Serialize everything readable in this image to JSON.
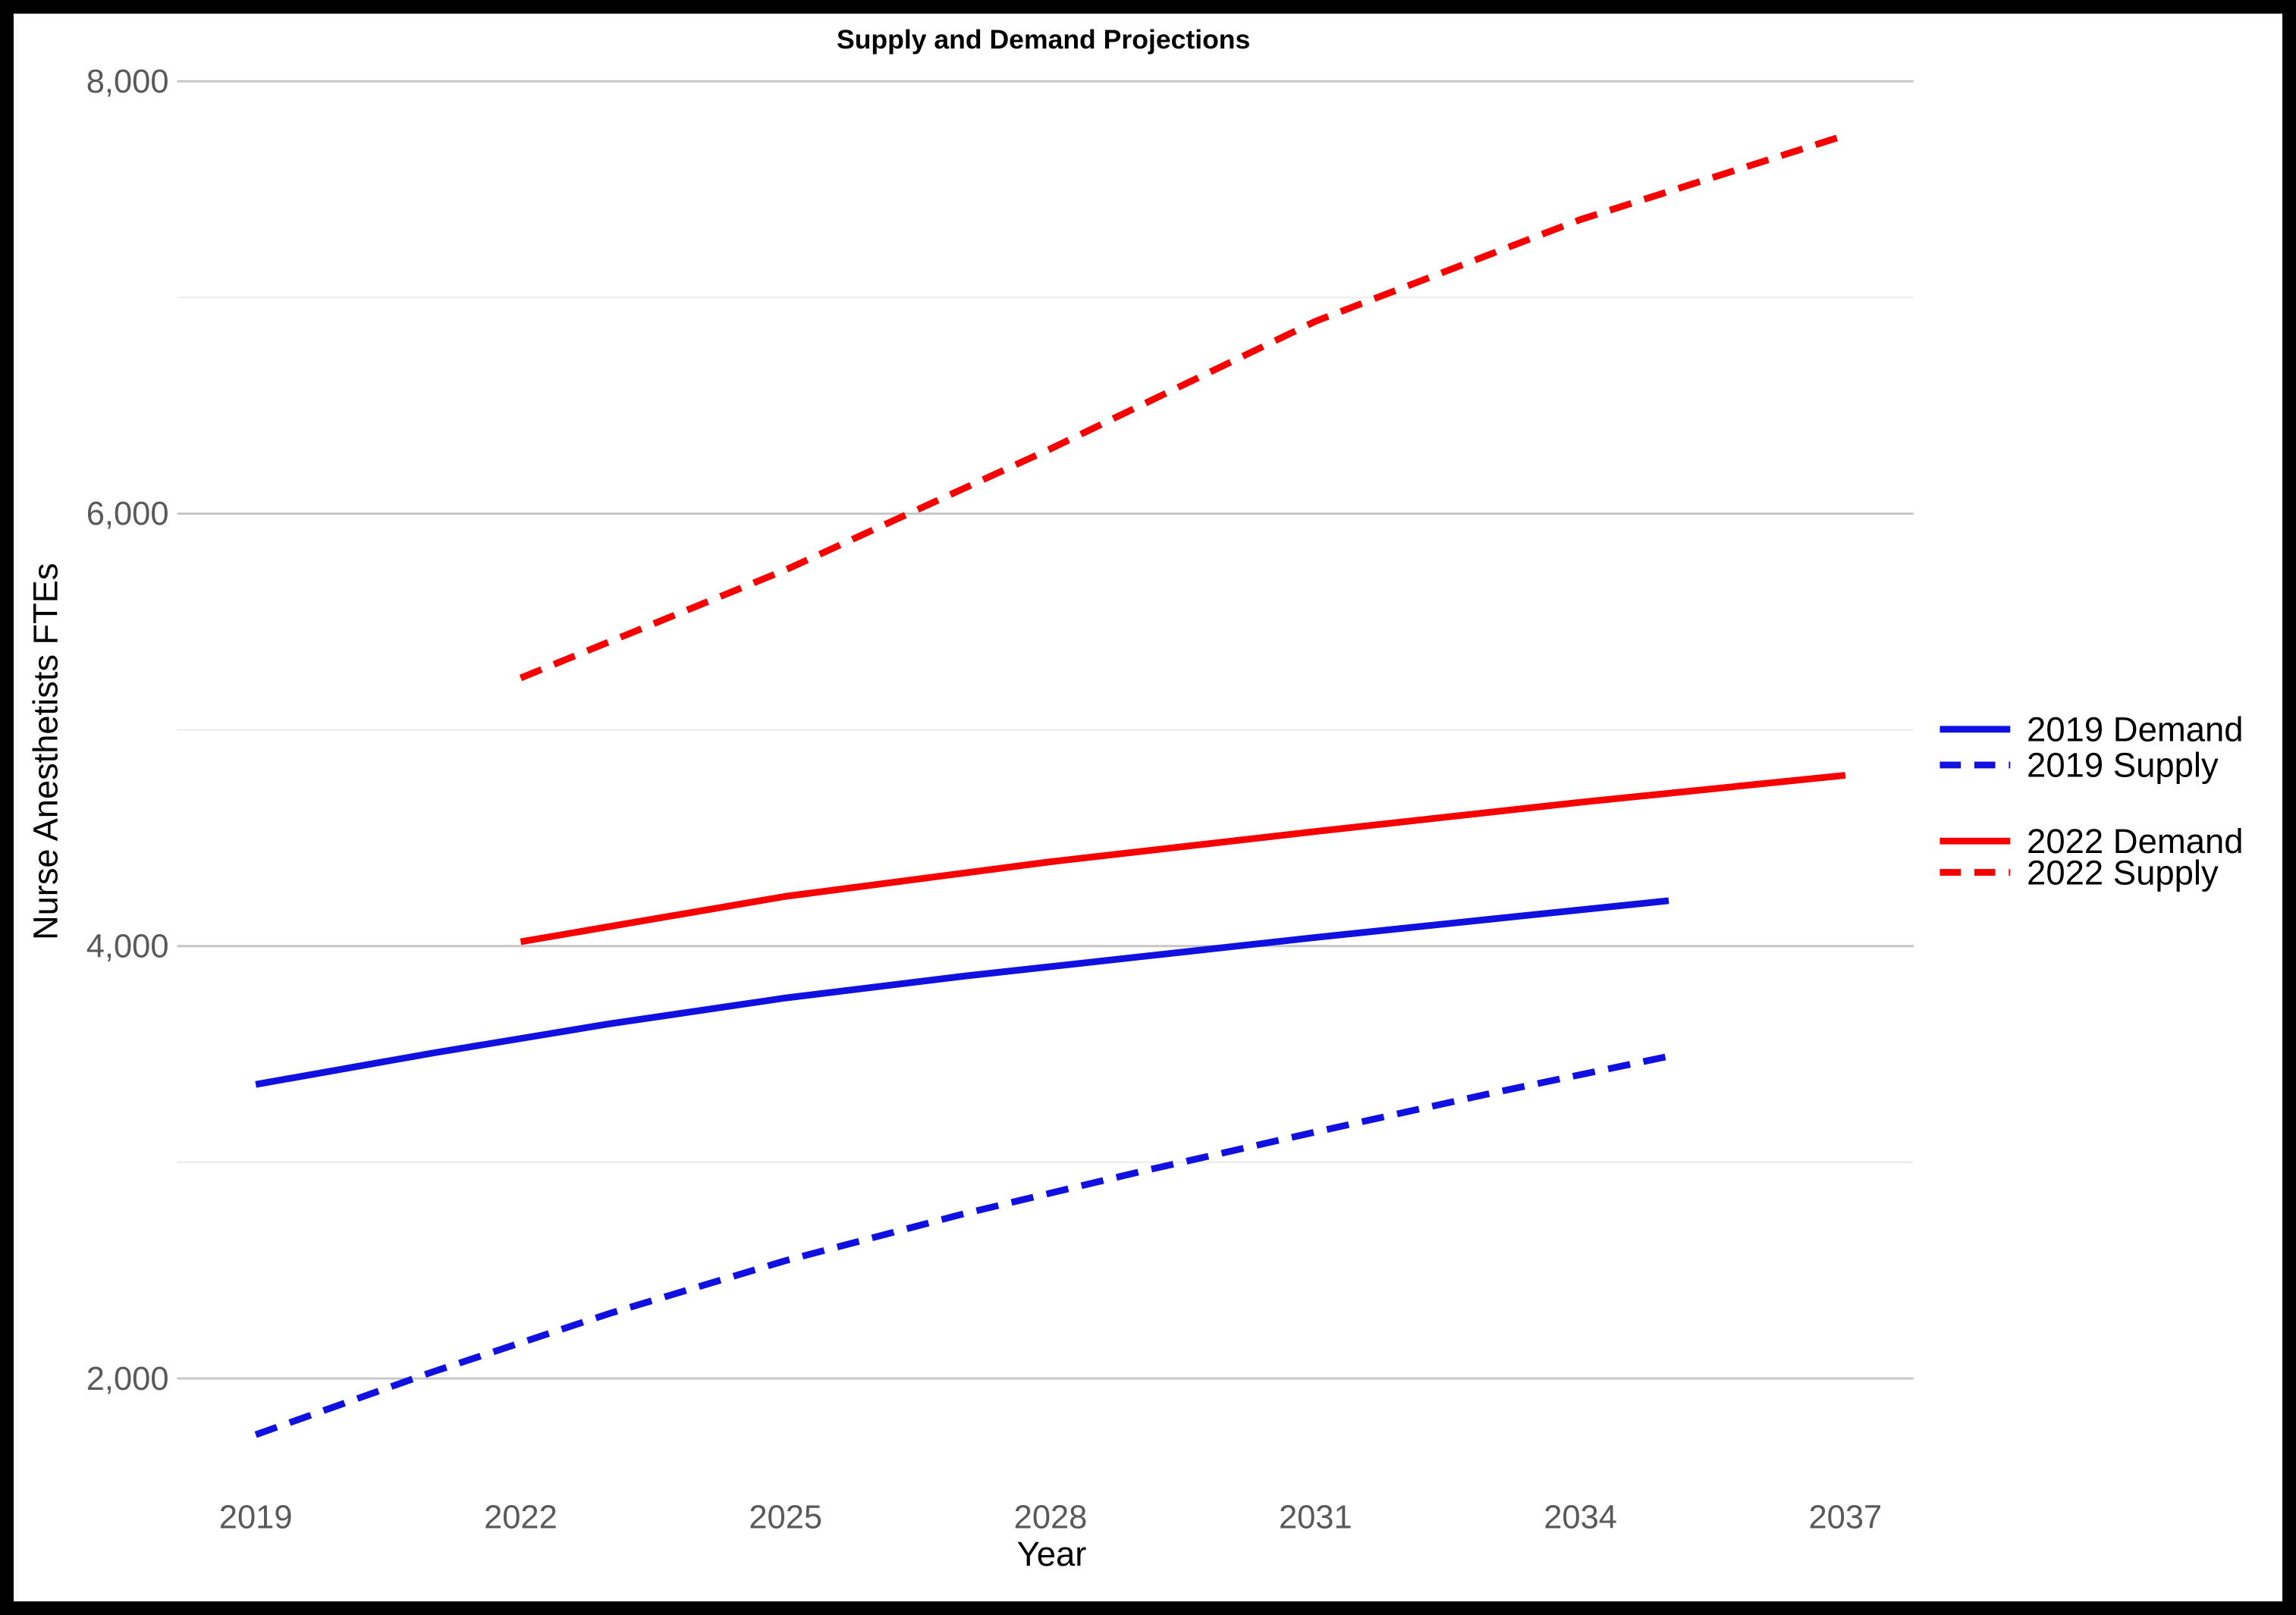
{
  "title": "Supply and Demand Projections",
  "axes": {
    "x_title": "Year",
    "y_title": "Nurse Anesthetists FTEs"
  },
  "colors": {
    "demand_supply_2019": "#1010E0",
    "demand_supply_2022": "#F80000",
    "grid_major": "#C6C6C6",
    "grid_minor": "#EBEBEB",
    "tick_text": "#595959",
    "frame": "#000000"
  },
  "legend": {
    "position": "right",
    "items": [
      {
        "label": "2019 Demand",
        "color": "#1010E0",
        "style": "solid"
      },
      {
        "label": "2019 Supply",
        "color": "#1010E0",
        "style": "dashed"
      },
      {
        "label": "2022 Demand",
        "color": "#F80000",
        "style": "solid"
      },
      {
        "label": "2022 Supply",
        "color": "#F80000",
        "style": "dashed"
      }
    ]
  },
  "chart_data": {
    "type": "line",
    "title": "Supply and Demand Projections",
    "xlabel": "Year",
    "ylabel": "Nurse Anesthetists FTEs",
    "xlim": [
      2019,
      2037
    ],
    "ylim": [
      1400,
      8300
    ],
    "x_ticks": [
      2019,
      2022,
      2025,
      2028,
      2031,
      2034,
      2037
    ],
    "y_ticks_major": [
      2000,
      4000,
      6000,
      8000
    ],
    "y_ticks_minor": [
      3000,
      5000,
      7000
    ],
    "grid": "horizontal",
    "legend_position": "right",
    "series": [
      {
        "name": "2019 Demand",
        "color": "#1010E0",
        "style": "solid",
        "points": [
          [
            2019,
            3360
          ],
          [
            2021,
            3505
          ],
          [
            2023,
            3640
          ],
          [
            2025,
            3760
          ],
          [
            2027,
            3860
          ],
          [
            2029,
            3950
          ],
          [
            2031,
            4040
          ],
          [
            2033,
            4125
          ],
          [
            2035,
            4210
          ]
        ]
      },
      {
        "name": "2019 Supply",
        "color": "#1010E0",
        "style": "dashed",
        "points": [
          [
            2019,
            1740
          ],
          [
            2021,
            2030
          ],
          [
            2023,
            2300
          ],
          [
            2025,
            2545
          ],
          [
            2027,
            2760
          ],
          [
            2029,
            2955
          ],
          [
            2031,
            3140
          ],
          [
            2033,
            3320
          ],
          [
            2035,
            3490
          ]
        ]
      },
      {
        "name": "2022 Demand",
        "color": "#F80000",
        "style": "solid",
        "points": [
          [
            2022,
            4020
          ],
          [
            2025,
            4230
          ],
          [
            2028,
            4390
          ],
          [
            2031,
            4530
          ],
          [
            2034,
            4665
          ],
          [
            2037,
            4790
          ]
        ]
      },
      {
        "name": "2022 Supply",
        "color": "#F80000",
        "style": "dashed",
        "points": [
          [
            2022,
            5240
          ],
          [
            2025,
            5740
          ],
          [
            2028,
            6300
          ],
          [
            2031,
            6890
          ],
          [
            2034,
            7360
          ],
          [
            2037,
            7750
          ]
        ]
      }
    ]
  }
}
